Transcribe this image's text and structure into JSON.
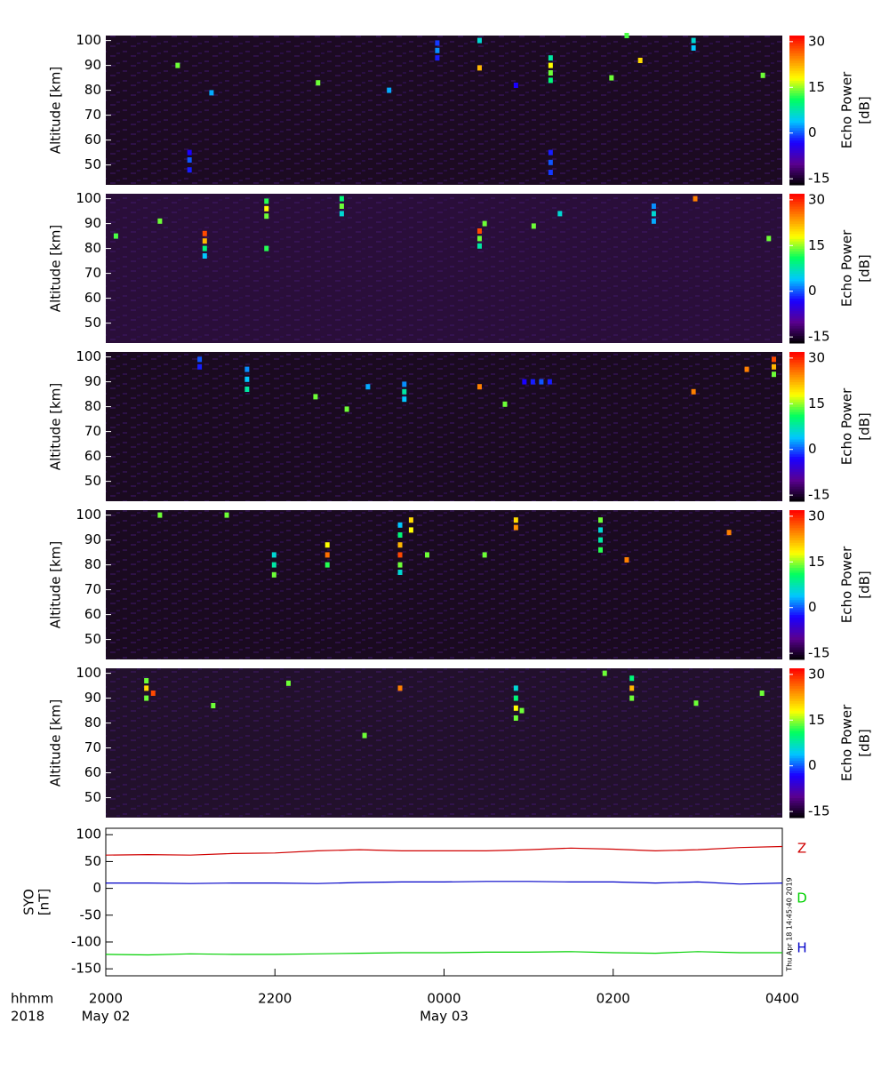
{
  "chart_data": [
    {
      "type": "heatmap",
      "ylabel": "Altitude [km]",
      "colorbar_label": [
        "Echo Power",
        "[dB]"
      ],
      "xlim": [
        20,
        28
      ],
      "ylim": [
        42,
        102
      ],
      "yticks": [
        50,
        60,
        70,
        80,
        90,
        100
      ],
      "clim": [
        -17,
        32
      ],
      "cticks": [
        -15,
        0,
        15,
        30
      ],
      "background": "#1c0a22",
      "colormap": [
        "#000000",
        "#5a0090",
        "#1a00ff",
        "#00c8ff",
        "#00ff60",
        "#ffff00",
        "#ff8000",
        "#ff0000"
      ],
      "x": [
        20.85,
        21.25,
        20.99,
        20.99,
        20.99,
        22.51,
        23.92,
        23.92,
        23.92,
        24.42,
        24.42,
        25.26,
        25.26,
        25.26,
        25.26,
        25.26,
        25.26,
        25.26,
        25.98,
        26.32,
        26.95,
        26.95,
        27.77,
        26.16,
        23.35,
        24.85
      ],
      "y": [
        90,
        79,
        48,
        52,
        55,
        83,
        93,
        96,
        99,
        100,
        89,
        84,
        87,
        90,
        93,
        47,
        51,
        55,
        85,
        92,
        97,
        100,
        86,
        102,
        80,
        82
      ],
      "values": [
        14,
        3,
        -2,
        0,
        -3,
        14,
        -2,
        2,
        -1,
        6,
        22,
        10,
        14,
        18,
        8,
        -1,
        0,
        -2,
        14,
        20,
        4,
        6,
        14,
        13,
        3,
        -3
      ]
    },
    {
      "type": "heatmap",
      "ylabel": "Altitude [km]",
      "colorbar_label": [
        "Echo Power",
        "[dB]"
      ],
      "xlim": [
        20,
        28
      ],
      "ylim": [
        42,
        102
      ],
      "yticks": [
        50,
        60,
        70,
        80,
        90,
        100
      ],
      "clim": [
        -17,
        32
      ],
      "cticks": [
        -15,
        0,
        15,
        30
      ],
      "background": "#2a0e3a",
      "colormap": [
        "#000000",
        "#5a0090",
        "#1a00ff",
        "#00c8ff",
        "#00ff60",
        "#ffff00",
        "#ff8000",
        "#ff0000"
      ],
      "x": [
        21.17,
        21.17,
        21.17,
        21.17,
        21.9,
        21.9,
        21.9,
        22.79,
        22.79,
        22.79,
        24.42,
        24.42,
        24.42,
        24.48,
        20.12,
        20.64,
        26.97,
        26.48,
        26.48,
        26.48,
        25.37,
        25.06,
        27.84,
        21.9
      ],
      "y": [
        77,
        80,
        83,
        86,
        93,
        96,
        99,
        94,
        97,
        100,
        81,
        84,
        87,
        90,
        85,
        91,
        100,
        91,
        94,
        97,
        94,
        89,
        84,
        80
      ],
      "values": [
        4,
        10,
        22,
        28,
        14,
        18,
        12,
        6,
        14,
        10,
        8,
        14,
        28,
        14,
        13,
        14,
        25,
        3,
        6,
        2,
        6,
        14,
        14,
        12
      ]
    },
    {
      "type": "heatmap",
      "ylabel": "Altitude [km]",
      "colorbar_label": [
        "Echo Power",
        "[dB]"
      ],
      "xlim": [
        20,
        28
      ],
      "ylim": [
        42,
        102
      ],
      "yticks": [
        50,
        60,
        70,
        80,
        90,
        100
      ],
      "clim": [
        -17,
        32
      ],
      "cticks": [
        -15,
        0,
        15,
        30
      ],
      "background": "#1a0a20",
      "colormap": [
        "#000000",
        "#5a0090",
        "#1a00ff",
        "#00c8ff",
        "#00ff60",
        "#ffff00",
        "#ff8000",
        "#ff0000"
      ],
      "x": [
        21.11,
        21.11,
        21.67,
        21.67,
        21.67,
        22.85,
        22.48,
        23.53,
        23.53,
        23.53,
        24.42,
        24.95,
        25.05,
        25.15,
        25.25,
        26.95,
        27.9,
        27.9,
        27.9,
        27.58,
        24.72,
        23.1
      ],
      "y": [
        96,
        99,
        87,
        91,
        95,
        79,
        84,
        83,
        86,
        89,
        88,
        90,
        90,
        90,
        90,
        86,
        93,
        96,
        99,
        95,
        81,
        88
      ],
      "values": [
        -2,
        0,
        8,
        4,
        2,
        14,
        14,
        4,
        8,
        2,
        25,
        -3,
        -2,
        0,
        -2,
        25,
        14,
        22,
        28,
        25,
        14,
        3
      ]
    },
    {
      "type": "heatmap",
      "ylabel": "Altitude [km]",
      "colorbar_label": [
        "Echo Power",
        "[dB]"
      ],
      "xlim": [
        20,
        28
      ],
      "ylim": [
        42,
        102
      ],
      "yticks": [
        50,
        60,
        70,
        80,
        90,
        100
      ],
      "clim": [
        -17,
        32
      ],
      "cticks": [
        -15,
        0,
        15,
        30
      ],
      "background": "#1a0a20",
      "colormap": [
        "#000000",
        "#5a0090",
        "#1a00ff",
        "#00c8ff",
        "#00ff60",
        "#ffff00",
        "#ff8000",
        "#ff0000"
      ],
      "x": [
        23.48,
        23.48,
        23.48,
        23.48,
        23.48,
        23.48,
        23.61,
        23.61,
        24.85,
        24.85,
        25.85,
        25.85,
        25.85,
        25.85,
        22.62,
        22.62,
        22.62,
        21.99,
        21.99,
        21.99,
        24.48,
        26.16,
        27.37,
        20.64,
        21.43,
        23.8
      ],
      "y": [
        77,
        80,
        84,
        88,
        92,
        96,
        94,
        98,
        95,
        98,
        86,
        90,
        94,
        98,
        80,
        84,
        88,
        76,
        80,
        84,
        84,
        82,
        93,
        100,
        100,
        84
      ],
      "values": [
        6,
        14,
        28,
        22,
        10,
        4,
        18,
        20,
        24,
        20,
        12,
        8,
        6,
        14,
        12,
        26,
        18,
        14,
        8,
        6,
        14,
        25,
        25,
        14,
        14,
        14
      ]
    },
    {
      "type": "heatmap",
      "ylabel": "Altitude [km]",
      "colorbar_label": [
        "Echo Power",
        "[dB]"
      ],
      "xlim": [
        20,
        28
      ],
      "ylim": [
        42,
        102
      ],
      "yticks": [
        50,
        60,
        70,
        80,
        90,
        100
      ],
      "clim": [
        -17,
        32
      ],
      "cticks": [
        -15,
        0,
        15,
        30
      ],
      "background": "#22102c",
      "colormap": [
        "#000000",
        "#5a0090",
        "#1a00ff",
        "#00c8ff",
        "#00ff60",
        "#ffff00",
        "#ff8000",
        "#ff0000"
      ],
      "x": [
        20.48,
        20.48,
        20.48,
        20.56,
        23.48,
        24.85,
        24.85,
        24.85,
        24.85,
        24.92,
        26.22,
        26.22,
        26.22,
        25.9,
        26.98,
        22.16,
        21.27,
        23.06,
        27.76
      ],
      "y": [
        90,
        94,
        97,
        92,
        94,
        82,
        86,
        90,
        94,
        85,
        90,
        94,
        98,
        100,
        88,
        96,
        87,
        75,
        92
      ],
      "values": [
        14,
        20,
        14,
        28,
        25,
        14,
        18,
        10,
        6,
        14,
        14,
        22,
        10,
        14,
        14,
        14,
        14,
        14,
        14
      ]
    },
    {
      "type": "line",
      "ylabel": [
        "SYO",
        "[nT]"
      ],
      "xlim": [
        20,
        28
      ],
      "ylim": [
        -163,
        112
      ],
      "yticks": [
        100,
        50,
        0,
        -50,
        -100,
        -150
      ],
      "xticks": [
        {
          "value": 20,
          "label": "2000"
        },
        {
          "value": 22,
          "label": "2200"
        },
        {
          "value": 24,
          "label": "0000"
        },
        {
          "value": 26,
          "label": "0200"
        },
        {
          "value": 28,
          "label": "0400"
        }
      ],
      "date_labels": [
        {
          "value": 20,
          "label": "May 02"
        },
        {
          "value": 24,
          "label": "May 03"
        }
      ],
      "x_axis_labels": [
        "hhmm",
        "2018"
      ],
      "timestamp": "Thu Apr 18 14:45:40 2019",
      "x": [
        20,
        20.5,
        21,
        21.5,
        22,
        22.5,
        23,
        23.5,
        24,
        24.5,
        25,
        25.5,
        26,
        26.5,
        27,
        27.5,
        28
      ],
      "series": [
        {
          "name": "Z",
          "color": "#d00000",
          "values": [
            62,
            63,
            62,
            65,
            66,
            70,
            72,
            70,
            70,
            70,
            72,
            75,
            73,
            70,
            72,
            76,
            78
          ]
        },
        {
          "name": "D",
          "color": "#00d000",
          "values": [
            -123,
            -124,
            -122,
            -123,
            -123,
            -122,
            -121,
            -120,
            -120,
            -119,
            -119,
            -118,
            -120,
            -121,
            -118,
            -120,
            -120
          ]
        },
        {
          "name": "H",
          "color": "#0000c8",
          "values": [
            10,
            10,
            9,
            10,
            10,
            9,
            11,
            12,
            12,
            13,
            13,
            12,
            12,
            10,
            12,
            8,
            10
          ]
        }
      ]
    }
  ]
}
